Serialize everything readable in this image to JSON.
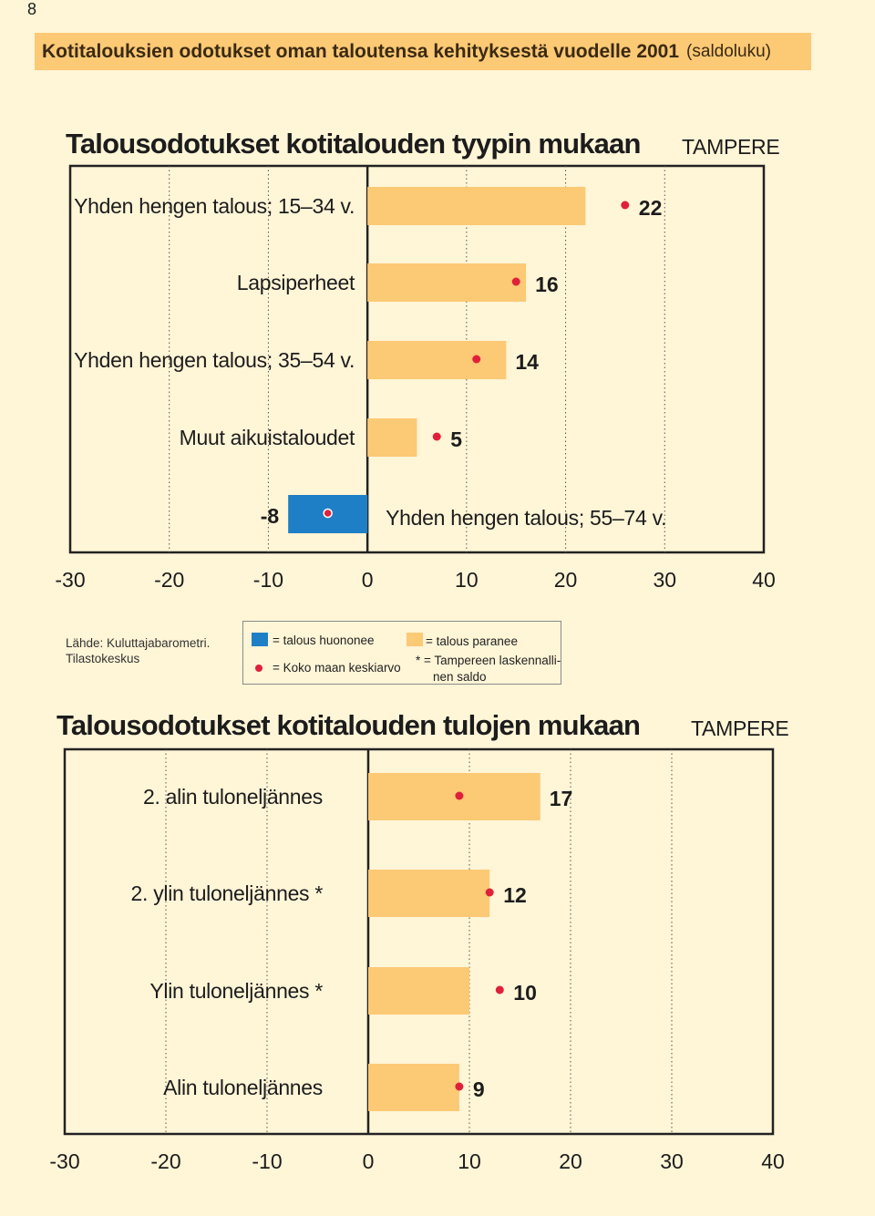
{
  "page_number": "8",
  "header": {
    "title": "Kotitalouksien odotukset oman taloutensa kehityksestä vuodelle 2001",
    "subtitle": "(saldoluku)"
  },
  "legend": {
    "source_line1": "Lähde: Kuluttajabarometri.",
    "source_line2": "Tilastokeskus",
    "decline": "= talous huononee",
    "improve": "= talous paranee",
    "average": "= Koko maan keskiarvo",
    "note_line1": "* = Tampereen laskennalli-",
    "note_line2": "nen saldo"
  },
  "colors": {
    "positive_bar": "#fcc975",
    "negative_bar": "#1f7fc6",
    "average_dot": "#e0203a",
    "background": "#fff5d7",
    "header_band": "#fcc975"
  },
  "chart_data": [
    {
      "type": "bar",
      "orientation": "horizontal",
      "title": "Talousodotukset kotitalouden tyypin mukaan",
      "region": "TAMPERE",
      "categories": [
        "Yhden hengen talous; 15–34 v.",
        "Lapsiperheet",
        "Yhden hengen talous; 35–54 v.",
        "Muut aikuistaloudet",
        "Yhden hengen talous; 55–74 v."
      ],
      "values": [
        22,
        16,
        14,
        5,
        -8
      ],
      "value_labels": [
        "22",
        "16",
        "14",
        "5",
        "-8"
      ],
      "national_average": [
        26,
        15,
        11,
        7,
        -4
      ],
      "xlim": [
        -30,
        40
      ],
      "xticks": [
        -30,
        -20,
        -10,
        0,
        10,
        20,
        30,
        40
      ],
      "xtick_labels": [
        "-30",
        "-20",
        "-10",
        "0",
        "10",
        "20",
        "30",
        "40"
      ],
      "grid": "vertical dotted"
    },
    {
      "type": "bar",
      "orientation": "horizontal",
      "title": "Talousodotukset kotitalouden tulojen mukaan",
      "region": "TAMPERE",
      "categories": [
        "2. alin tuloneljännes",
        "2. ylin tuloneljännes *",
        "Ylin tuloneljännes *",
        "Alin tuloneljännes"
      ],
      "values": [
        17,
        12,
        10,
        9
      ],
      "value_labels": [
        "17",
        "12",
        "10",
        "9"
      ],
      "national_average": [
        9,
        12,
        13,
        9
      ],
      "xlim": [
        -30,
        40
      ],
      "xticks": [
        -30,
        -20,
        -10,
        0,
        10,
        20,
        30,
        40
      ],
      "xtick_labels": [
        "-30",
        "-20",
        "-10",
        "0",
        "10",
        "20",
        "30",
        "40"
      ],
      "grid": "vertical dotted"
    }
  ]
}
